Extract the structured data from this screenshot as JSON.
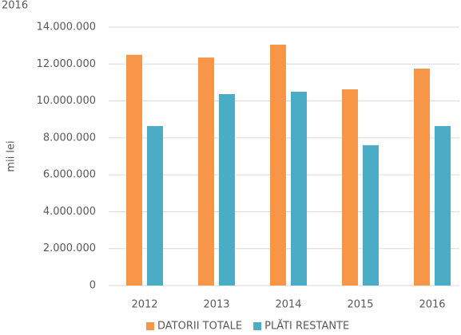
{
  "chart_data": {
    "type": "bar",
    "title": "2016",
    "y_label": "mii lei",
    "categories": [
      "2012",
      "2013",
      "2014",
      "2015",
      "2016"
    ],
    "series": [
      {
        "name": "DATORII TOTALE",
        "color": "#f79646",
        "values": [
          12500000,
          12350000,
          13050000,
          10630000,
          11750000
        ]
      },
      {
        "name": "PLĂTI RESTANTE",
        "color": "#4bacc6",
        "values": [
          8640000,
          10370000,
          10500000,
          7600000,
          8640000
        ]
      }
    ],
    "ylim": [
      0,
      14000000
    ],
    "yticks": [
      0,
      {
        "value": 2000000,
        "label": "2.000.000"
      },
      {
        "value": 4000000,
        "label": "4.000.000"
      },
      {
        "value": 6000000,
        "label": "6.000.000"
      },
      {
        "value": 8000000,
        "label": "8.000.000"
      },
      {
        "value": 10000000,
        "label": "10.000.000"
      },
      {
        "value": 12000000,
        "label": "12.000.000"
      },
      {
        "value": 14000000,
        "label": "14.000.000"
      }
    ],
    "grid": true,
    "legend": "bottom"
  }
}
